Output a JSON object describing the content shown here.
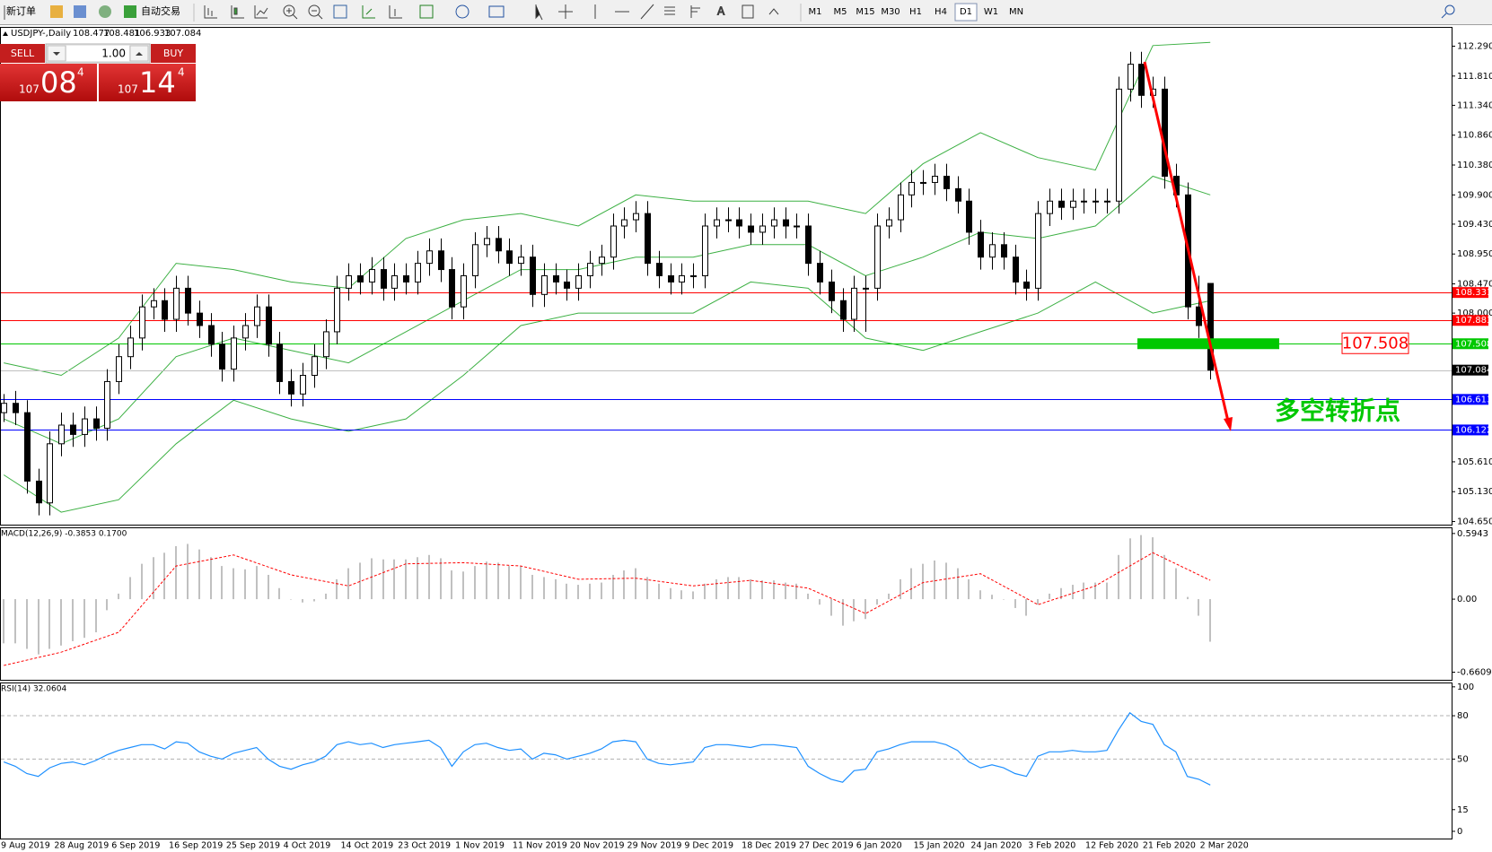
{
  "toolbar": {
    "new_order": "新订单",
    "auto_trading": "自动交易",
    "timeframes": [
      "M1",
      "M5",
      "M15",
      "M30",
      "H1",
      "H4",
      "D1",
      "W1",
      "MN"
    ],
    "active_timeframe": "D1"
  },
  "trade_panel": {
    "sell": "SELL",
    "buy": "BUY",
    "lots": "1.00",
    "bid": [
      "107",
      "08",
      "4"
    ],
    "ask": [
      "107",
      "14",
      "4"
    ]
  },
  "chart_data": [
    {
      "type": "candlestick",
      "title": "USDJPY-,Daily",
      "header_values": [
        108.477,
        108.481,
        106.933,
        107.084
      ],
      "bull_color": "#ffffff",
      "bear_color": "#000000",
      "candles": [
        [
          106.4,
          106.7,
          106.25,
          106.55
        ],
        [
          106.55,
          106.75,
          106.2,
          106.4
        ],
        [
          106.4,
          106.6,
          105.1,
          105.3
        ],
        [
          105.3,
          105.5,
          104.75,
          104.95
        ],
        [
          104.95,
          106.1,
          104.75,
          105.9
        ],
        [
          105.9,
          106.4,
          105.7,
          106.2
        ],
        [
          106.2,
          106.4,
          105.85,
          106.05
        ],
        [
          106.05,
          106.5,
          105.85,
          106.3
        ],
        [
          106.3,
          106.5,
          105.95,
          106.15
        ],
        [
          106.15,
          107.1,
          105.95,
          106.9
        ],
        [
          106.9,
          107.5,
          106.7,
          107.3
        ],
        [
          107.3,
          107.8,
          107.1,
          107.6
        ],
        [
          107.6,
          108.3,
          107.4,
          108.1
        ],
        [
          108.1,
          108.4,
          107.9,
          108.2
        ],
        [
          108.2,
          108.4,
          107.7,
          107.9
        ],
        [
          107.9,
          108.6,
          107.7,
          108.4
        ],
        [
          108.4,
          108.6,
          107.8,
          108.0
        ],
        [
          108.0,
          108.2,
          107.6,
          107.8
        ],
        [
          107.8,
          108.0,
          107.3,
          107.5
        ],
        [
          107.5,
          107.7,
          106.9,
          107.1
        ],
        [
          107.1,
          107.8,
          106.9,
          107.6
        ],
        [
          107.6,
          108.0,
          107.4,
          107.8
        ],
        [
          107.8,
          108.3,
          107.6,
          108.1
        ],
        [
          108.1,
          108.3,
          107.3,
          107.5
        ],
        [
          107.5,
          107.7,
          106.7,
          106.9
        ],
        [
          106.9,
          107.1,
          106.5,
          106.7
        ],
        [
          106.7,
          107.2,
          106.5,
          107.0
        ],
        [
          107.0,
          107.5,
          106.8,
          107.3
        ],
        [
          107.3,
          107.9,
          107.1,
          107.7
        ],
        [
          107.7,
          108.6,
          107.5,
          108.4
        ],
        [
          108.4,
          108.8,
          108.2,
          108.6
        ],
        [
          108.6,
          108.8,
          108.3,
          108.5
        ],
        [
          108.5,
          108.9,
          108.3,
          108.7
        ],
        [
          108.7,
          108.9,
          108.2,
          108.4
        ],
        [
          108.4,
          108.8,
          108.2,
          108.6
        ],
        [
          108.6,
          108.8,
          108.3,
          108.5
        ],
        [
          108.5,
          109.0,
          108.3,
          108.8
        ],
        [
          108.8,
          109.2,
          108.6,
          109.0
        ],
        [
          109.0,
          109.2,
          108.5,
          108.7
        ],
        [
          108.7,
          108.9,
          107.9,
          108.1
        ],
        [
          108.1,
          108.8,
          107.9,
          108.6
        ],
        [
          108.6,
          109.3,
          108.4,
          109.1
        ],
        [
          109.1,
          109.4,
          108.9,
          109.2
        ],
        [
          109.2,
          109.4,
          108.8,
          109.0
        ],
        [
          109.0,
          109.2,
          108.6,
          108.8
        ],
        [
          108.8,
          109.1,
          108.6,
          108.9
        ],
        [
          108.9,
          109.1,
          108.1,
          108.3
        ],
        [
          108.3,
          108.8,
          108.1,
          108.6
        ],
        [
          108.6,
          108.8,
          108.3,
          108.5
        ],
        [
          108.5,
          108.7,
          108.2,
          108.4
        ],
        [
          108.4,
          108.8,
          108.2,
          108.6
        ],
        [
          108.6,
          109.0,
          108.4,
          108.8
        ],
        [
          108.8,
          109.1,
          108.6,
          108.9
        ],
        [
          108.9,
          109.6,
          108.7,
          109.4
        ],
        [
          109.4,
          109.7,
          109.2,
          109.5
        ],
        [
          109.5,
          109.8,
          109.3,
          109.6
        ],
        [
          109.6,
          109.8,
          108.6,
          108.8
        ],
        [
          108.8,
          109.0,
          108.4,
          108.6
        ],
        [
          108.6,
          108.8,
          108.3,
          108.5
        ],
        [
          108.5,
          108.8,
          108.3,
          108.6
        ],
        [
          108.6,
          108.8,
          108.4,
          108.6
        ],
        [
          108.6,
          109.6,
          108.4,
          109.4
        ],
        [
          109.4,
          109.7,
          109.2,
          109.5
        ],
        [
          109.5,
          109.7,
          109.3,
          109.5
        ],
        [
          109.5,
          109.7,
          109.2,
          109.4
        ],
        [
          109.4,
          109.6,
          109.1,
          109.3
        ],
        [
          109.3,
          109.6,
          109.1,
          109.4
        ],
        [
          109.4,
          109.7,
          109.2,
          109.5
        ],
        [
          109.5,
          109.7,
          109.2,
          109.4
        ],
        [
          109.4,
          109.6,
          109.2,
          109.4
        ],
        [
          109.4,
          109.6,
          108.6,
          108.8
        ],
        [
          108.8,
          109.0,
          108.3,
          108.5
        ],
        [
          108.5,
          108.7,
          108.0,
          108.2
        ],
        [
          108.2,
          108.4,
          107.7,
          107.9
        ],
        [
          107.9,
          108.6,
          107.7,
          108.4
        ],
        [
          108.4,
          108.6,
          107.7,
          108.4
        ],
        [
          108.4,
          109.6,
          108.2,
          109.4
        ],
        [
          109.4,
          109.7,
          109.2,
          109.5
        ],
        [
          109.5,
          110.1,
          109.3,
          109.9
        ],
        [
          109.9,
          110.3,
          109.7,
          110.1
        ],
        [
          110.1,
          110.3,
          109.9,
          110.1
        ],
        [
          110.1,
          110.4,
          109.9,
          110.2
        ],
        [
          110.2,
          110.4,
          109.8,
          110.0
        ],
        [
          110.0,
          110.2,
          109.6,
          109.8
        ],
        [
          109.8,
          110.0,
          109.1,
          109.3
        ],
        [
          109.3,
          109.5,
          108.7,
          108.9
        ],
        [
          108.9,
          109.3,
          108.7,
          109.1
        ],
        [
          109.1,
          109.3,
          108.7,
          108.9
        ],
        [
          108.9,
          109.1,
          108.3,
          108.5
        ],
        [
          108.5,
          108.7,
          108.2,
          108.4
        ],
        [
          108.4,
          109.8,
          108.2,
          109.6
        ],
        [
          109.6,
          110.0,
          109.4,
          109.8
        ],
        [
          109.8,
          110.0,
          109.5,
          109.7
        ],
        [
          109.7,
          110.0,
          109.5,
          109.8
        ],
        [
          109.8,
          110.0,
          109.6,
          109.8
        ],
        [
          109.8,
          110.0,
          109.6,
          109.8
        ],
        [
          109.8,
          110.0,
          109.6,
          109.8
        ],
        [
          109.8,
          111.8,
          109.6,
          111.6
        ],
        [
          111.6,
          112.2,
          111.4,
          112.0
        ],
        [
          112.0,
          112.2,
          111.3,
          111.5
        ],
        [
          111.5,
          111.8,
          111.3,
          111.6
        ],
        [
          111.6,
          111.8,
          110.0,
          110.2
        ],
        [
          110.2,
          110.4,
          109.7,
          109.9
        ],
        [
          109.9,
          110.1,
          107.9,
          108.1
        ],
        [
          108.1,
          108.6,
          107.6,
          107.8
        ],
        [
          108.477,
          108.481,
          106.933,
          107.084
        ]
      ],
      "bands": {
        "color": "#3cb043",
        "x": [
          0,
          5,
          10,
          15,
          20,
          25,
          30,
          35,
          40,
          45,
          50,
          55,
          60,
          65,
          70,
          75,
          80,
          85,
          90,
          95,
          100,
          105
        ],
        "series": [
          {
            "values": [
              107.2,
              107.0,
              107.6,
              108.8,
              108.7,
              108.5,
              108.4,
              109.2,
              109.5,
              109.6,
              109.4,
              109.9,
              109.8,
              109.8,
              109.8,
              109.6,
              110.4,
              110.9,
              110.5,
              110.3,
              112.3,
              112.35
            ]
          },
          {
            "values": [
              106.3,
              105.9,
              106.3,
              107.3,
              107.6,
              107.4,
              107.2,
              107.7,
              108.2,
              108.7,
              108.7,
              108.9,
              108.9,
              109.1,
              109.1,
              108.6,
              108.9,
              109.3,
              109.2,
              109.4,
              110.2,
              109.9
            ]
          },
          {
            "values": [
              105.4,
              104.8,
              105.0,
              105.9,
              106.6,
              106.3,
              106.1,
              106.3,
              107.0,
              107.8,
              108.0,
              108.0,
              108.0,
              108.5,
              108.4,
              107.6,
              107.4,
              107.7,
              108.0,
              108.5,
              108.0,
              108.2
            ]
          }
        ]
      },
      "levels": [
        {
          "value": 108.331,
          "line_color": "#ff0000",
          "box_color": "#ff0000"
        },
        {
          "value": 107.883,
          "line_color": "#ff0000",
          "box_color": "#ff0000"
        },
        {
          "value": 107.508,
          "line_color": "#00c800",
          "box_color": "#00c800"
        },
        {
          "value": 107.084,
          "line_color": "#c0c0c0",
          "box_color": "#000000"
        },
        {
          "value": 106.613,
          "line_color": "#0000ff",
          "box_color": "#0000ff"
        },
        {
          "value": 106.122,
          "line_color": "#0000ff",
          "box_color": "#0000ff"
        }
      ],
      "turning_point_label": "多空转折点",
      "turning_point_color": "#00c800",
      "ylim": [
        104.6,
        112.6
      ],
      "yticks": [
        {
          "value": 112.29,
          "label": "112.290"
        },
        {
          "value": 111.81,
          "label": "111.810"
        },
        {
          "value": 111.34,
          "label": "111.340"
        },
        {
          "value": 110.86,
          "label": "110.860"
        },
        {
          "value": 110.38,
          "label": "110.380"
        },
        {
          "value": 109.9,
          "label": "109.900"
        },
        {
          "value": 109.43,
          "label": "109.430"
        },
        {
          "value": 108.95,
          "label": "108.950"
        },
        {
          "value": 108.47,
          "label": "108.470"
        },
        {
          "value": 108,
          "label": "108.000"
        },
        {
          "value": 105.61,
          "label": "105.610"
        },
        {
          "value": 105.13,
          "label": "105.130"
        },
        {
          "value": 104.65,
          "label": "104.650"
        }
      ],
      "dates": [
        "9 Aug 2019",
        "28 Aug 2019",
        "6 Sep 2019",
        "16 Sep 2019",
        "25 Sep 2019",
        "4 Oct 2019",
        "14 Oct 2019",
        "23 Oct 2019",
        "1 Nov 2019",
        "11 Nov 2019",
        "20 Nov 2019",
        "29 Nov 2019",
        "9 Dec 2019",
        "18 Dec 2019",
        "27 Dec 2019",
        "6 Jan 2020",
        "15 Jan 2020",
        "24 Jan 2020",
        "3 Feb 2020",
        "12 Feb 2020",
        "21 Feb 2020",
        "2 Mar 2020"
      ]
    },
    {
      "type": "macd",
      "title": "MACD(12,26,9) -0.3853 0.1700",
      "color": "#c0c0c0",
      "values": [
        -0.4,
        -0.4,
        -0.45,
        -0.5,
        -0.45,
        -0.42,
        -0.38,
        -0.35,
        -0.3,
        -0.1,
        0.05,
        0.2,
        0.32,
        0.38,
        0.42,
        0.48,
        0.5,
        0.45,
        0.38,
        0.3,
        0.28,
        0.27,
        0.3,
        0.22,
        0.1,
        0.0,
        -0.03,
        -0.02,
        0.05,
        0.18,
        0.28,
        0.33,
        0.37,
        0.36,
        0.36,
        0.36,
        0.38,
        0.4,
        0.37,
        0.26,
        0.25,
        0.3,
        0.34,
        0.33,
        0.3,
        0.3,
        0.22,
        0.2,
        0.18,
        0.14,
        0.13,
        0.14,
        0.15,
        0.22,
        0.26,
        0.28,
        0.2,
        0.14,
        0.1,
        0.08,
        0.07,
        0.14,
        0.18,
        0.2,
        0.2,
        0.18,
        0.17,
        0.17,
        0.15,
        0.14,
        0.05,
        -0.05,
        -0.15,
        -0.24,
        -0.2,
        -0.18,
        -0.05,
        0.05,
        0.18,
        0.28,
        0.32,
        0.35,
        0.33,
        0.28,
        0.18,
        0.08,
        0.04,
        0.0,
        -0.08,
        -0.15,
        -0.05,
        0.05,
        0.1,
        0.13,
        0.15,
        0.15,
        0.15,
        0.4,
        0.55,
        0.58,
        0.56,
        0.4,
        0.28,
        0.02,
        -0.15,
        -0.3853
      ],
      "signal": {
        "color": "#ff0000",
        "x": [
          0,
          5,
          10,
          15,
          20,
          25,
          30,
          35,
          40,
          45,
          50,
          55,
          60,
          65,
          70,
          75,
          80,
          85,
          90,
          95,
          100,
          105
        ],
        "values": [
          -0.6,
          -0.48,
          -0.3,
          0.3,
          0.4,
          0.22,
          0.12,
          0.32,
          0.33,
          0.3,
          0.18,
          0.19,
          0.12,
          0.17,
          0.1,
          -0.13,
          0.15,
          0.23,
          -0.05,
          0.12,
          0.42,
          0.17
        ]
      },
      "ylim": [
        -0.73,
        0.65
      ],
      "yticks": [
        0.5943,
        {
          "value": 0,
          "label": "0.00"
        },
        -0.6609
      ]
    },
    {
      "type": "line",
      "title": "RSI(14) 32.0604",
      "color": "#1e90ff",
      "values": [
        48,
        45,
        40,
        38,
        44,
        47,
        48,
        46,
        49,
        53,
        56,
        58,
        60,
        60,
        57,
        62,
        61,
        55,
        52,
        50,
        54,
        56,
        58,
        50,
        45,
        43,
        46,
        48,
        52,
        60,
        62,
        60,
        61,
        58,
        60,
        61,
        62,
        63,
        58,
        45,
        55,
        60,
        61,
        58,
        56,
        57,
        50,
        54,
        53,
        50,
        52,
        54,
        57,
        62,
        63,
        62,
        50,
        47,
        46,
        47,
        48,
        58,
        60,
        60,
        59,
        58,
        60,
        60,
        59,
        58,
        45,
        40,
        36,
        34,
        42,
        43,
        55,
        57,
        60,
        62,
        62,
        62,
        60,
        56,
        48,
        44,
        46,
        44,
        40,
        38,
        52,
        55,
        55,
        56,
        55,
        55,
        56,
        70,
        82,
        76,
        74,
        60,
        55,
        38,
        36,
        32.0604
      ],
      "ylim": [
        -5,
        103
      ],
      "yticks": [
        100,
        80,
        50,
        15,
        0
      ],
      "dashed_levels": [
        80,
        50
      ]
    }
  ]
}
